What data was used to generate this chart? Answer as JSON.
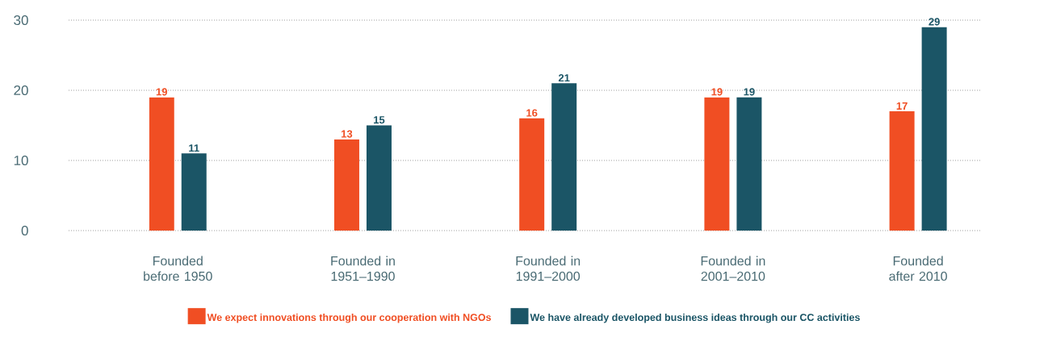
{
  "chart_data": {
    "type": "bar",
    "categories": [
      "Founded before 1950",
      "Founded in 1951–1990",
      "Founded in 1991–2000",
      "Founded in 2001–2010",
      "Founded after 2010"
    ],
    "series": [
      {
        "name": "We expect innovations through our cooperation with NGOs",
        "color": "#f04e23",
        "values": [
          19,
          13,
          16,
          19,
          17
        ]
      },
      {
        "name": "We have already developed business ideas through our CC activities",
        "color": "#1b5566",
        "values": [
          11,
          15,
          21,
          19,
          29
        ]
      }
    ],
    "ylim": [
      0,
      30
    ],
    "yticks": [
      0,
      10,
      20,
      30
    ],
    "grid": "y",
    "legend": "bottom",
    "data_labels": true
  }
}
